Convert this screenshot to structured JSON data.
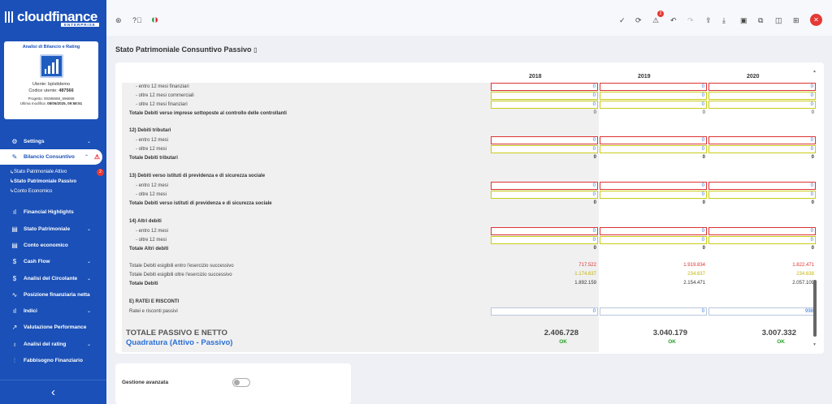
{
  "brand": {
    "name": "cloudfinance",
    "sub": "ENTERPRISE"
  },
  "card": {
    "title": "Analisi di Bilancio e Rating",
    "icon_caption": "ANALISI DI BILANCIO E RATING",
    "user": "Utente: bplsttdemo",
    "code_label": "Codice utente: ",
    "code": "487566",
    "project": "Progetto: 00286568_596668",
    "modified_label": "Ultima modifica: ",
    "modified": "08/05/2025, 09:58:51"
  },
  "nav": {
    "settings": "Settings",
    "bilancio": "Bilancio Consuntivo",
    "sub": [
      "Stato Patrimoniale Attivo",
      "Stato Patrimoniale Passivo",
      "Conto Economico"
    ],
    "sub_badge": "2",
    "items": [
      "Financial Highlights",
      "Stato Patrimoniale",
      "Conto economico",
      "Cash Flow",
      "Analisi del Circolante",
      "Posizione finanziaria netta",
      "Indici",
      "Valutazione Performance",
      "Analisi del rating",
      "Fabbisogno Finanziario"
    ],
    "collapse": "‹"
  },
  "toolbar": {
    "warning_badge": "2"
  },
  "page": {
    "title": "Stato Patrimoniale Consuntivo Passivo"
  },
  "years": [
    "2018",
    "2019",
    "2020"
  ],
  "rows": [
    {
      "label": "- entro 12 mesi finanziari",
      "v": [
        "0",
        "0",
        "0"
      ],
      "kind": "red",
      "ind": true
    },
    {
      "label": "- oltre 12 mesi commerciali",
      "v": [
        "0",
        "0",
        "0"
      ],
      "kind": "in",
      "ind": true
    },
    {
      "label": "- oltre 12 mesi finanziari",
      "v": [
        "0",
        "0",
        "0"
      ],
      "kind": "in",
      "ind": true
    },
    {
      "label": "Totale Debiti verso imprese sottoposte al controllo delle controllanti",
      "v": [
        "0",
        "0",
        "0"
      ],
      "kind": "t",
      "bold": true
    },
    {
      "label": "12) Debiti tributari",
      "v": [
        "",
        "",
        ""
      ],
      "kind": "none",
      "bold": true
    },
    {
      "label": "- entro 12 mesi",
      "v": [
        "0",
        "0",
        "0"
      ],
      "kind": "red",
      "ind": true
    },
    {
      "label": "- oltre 12 mesi",
      "v": [
        "0",
        "0",
        "0"
      ],
      "kind": "in",
      "ind": true
    },
    {
      "label": "Totale Debiti tributari",
      "v": [
        "0",
        "0",
        "0"
      ],
      "kind": "tb",
      "bold": true
    },
    {
      "label": "13) Debiti verso istituti di previdenza e di sicurezza sociale",
      "v": [
        "",
        "",
        ""
      ],
      "kind": "none",
      "bold": true
    },
    {
      "label": "- entro 12 mesi",
      "v": [
        "0",
        "0",
        "0"
      ],
      "kind": "red",
      "ind": true
    },
    {
      "label": "- oltre 12 mesi",
      "v": [
        "0",
        "0",
        "0"
      ],
      "kind": "in",
      "ind": true
    },
    {
      "label": "Totale Debiti verso istituti di previdenza e di sicurezza sociale",
      "v": [
        "0",
        "0",
        "0"
      ],
      "kind": "tb",
      "bold": true
    },
    {
      "label": "14) Altri debiti",
      "v": [
        "",
        "",
        ""
      ],
      "kind": "none",
      "bold": true
    },
    {
      "label": "- entro 12 mesi",
      "v": [
        "0",
        "0",
        "0"
      ],
      "kind": "red",
      "ind": true
    },
    {
      "label": "- oltre 12 mesi",
      "v": [
        "0",
        "0",
        "0"
      ],
      "kind": "in",
      "ind": true
    },
    {
      "label": "Totale Altri debiti",
      "v": [
        "0",
        "0",
        "0"
      ],
      "kind": "tb",
      "bold": true
    },
    {
      "label": "Totale Debiti esigibili entro l'esercizio successivo",
      "v": [
        "717.522",
        "1.919.834",
        "1.822.471"
      ],
      "kind": "r"
    },
    {
      "label": "Totale Debiti esigibili oltre l'esercizio successivo",
      "v": [
        "1.174.637",
        "234.637",
        "234.638"
      ],
      "kind": "y"
    },
    {
      "label": "Totale Debiti",
      "v": [
        "1.892.159",
        "2.154.471",
        "2.057.109"
      ],
      "kind": "t",
      "bold": true
    },
    {
      "label": "E) RATEI E RISCONTI",
      "v": [
        "",
        "",
        ""
      ],
      "kind": "none",
      "bold": true
    },
    {
      "label": "Ratei e risconti passivi",
      "v": [
        "0",
        "0",
        "998"
      ],
      "kind": "blue"
    }
  ],
  "totals": {
    "label": "TOTALE PASSIVO E NETTO",
    "values": [
      "2.406.728",
      "3.040.179",
      "3.007.332"
    ],
    "check_label": "Quadratura (Attivo - Passivo)",
    "check": [
      "OK",
      "OK",
      "OK"
    ]
  },
  "advanced": {
    "label": "Gestione avanzata"
  }
}
